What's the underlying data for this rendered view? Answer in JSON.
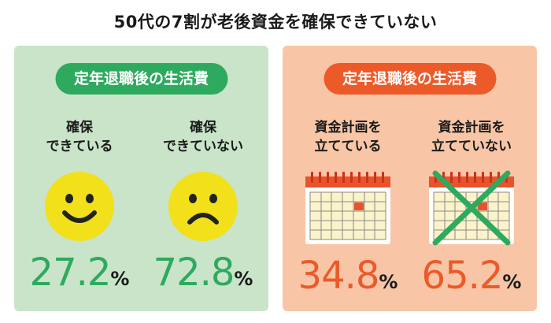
{
  "title": "50代の7割が老後資金を確保できていない",
  "left": {
    "heading": "定年退職後の生活費",
    "items": [
      {
        "label_line1": "確保",
        "label_line2": "できている",
        "value": "27.2",
        "unit": "%",
        "icon": "smiley-face-icon"
      },
      {
        "label_line1": "確保",
        "label_line2": "できていない",
        "value": "72.8",
        "unit": "%",
        "icon": "sad-face-icon"
      }
    ]
  },
  "right": {
    "heading": "定年退職後の生活費",
    "items": [
      {
        "label_line1": "資金計画を",
        "label_line2": "立てている",
        "value": "34.8",
        "unit": "%",
        "icon": "calendar-icon"
      },
      {
        "label_line1": "資金計画を",
        "label_line2": "立てていない",
        "value": "65.2",
        "unit": "%",
        "icon": "crossed-calendar-icon"
      }
    ]
  },
  "colors": {
    "green": "#2eaa5e",
    "green_bg": "#c9e4c9",
    "orange": "#ec5a2a",
    "orange_bg": "#f8c6a6",
    "face": "#f2e01a",
    "calendar_red": "#e8532b"
  }
}
